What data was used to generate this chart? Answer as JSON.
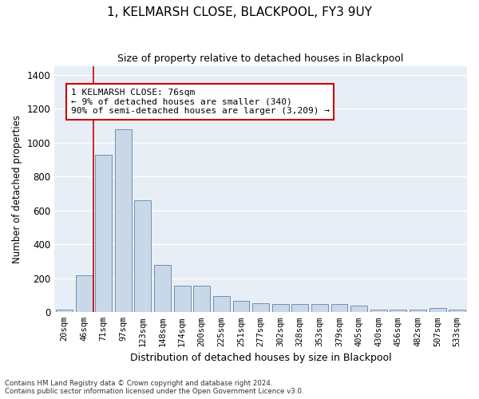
{
  "title_line1": "1, KELMARSH CLOSE, BLACKPOOL, FY3 9UY",
  "title_line2": "Size of property relative to detached houses in Blackpool",
  "xlabel": "Distribution of detached houses by size in Blackpool",
  "ylabel": "Number of detached properties",
  "categories": [
    "20sqm",
    "46sqm",
    "71sqm",
    "97sqm",
    "123sqm",
    "148sqm",
    "174sqm",
    "200sqm",
    "225sqm",
    "251sqm",
    "277sqm",
    "302sqm",
    "328sqm",
    "353sqm",
    "379sqm",
    "405sqm",
    "430sqm",
    "456sqm",
    "482sqm",
    "507sqm",
    "533sqm"
  ],
  "values": [
    15,
    220,
    930,
    1080,
    660,
    280,
    155,
    155,
    95,
    65,
    55,
    50,
    50,
    50,
    50,
    40,
    15,
    15,
    15,
    25,
    15
  ],
  "bar_color": "#c8d8e8",
  "bar_edge_color": "#7090b0",
  "background_color": "#e8eef5",
  "grid_color": "#ffffff",
  "annotation_box_color": "#cc0000",
  "property_line_idx": 2,
  "annotation_text": "1 KELMARSH CLOSE: 76sqm\n← 9% of detached houses are smaller (340)\n90% of semi-detached houses are larger (3,209) →",
  "footer_line1": "Contains HM Land Registry data © Crown copyright and database right 2024.",
  "footer_line2": "Contains public sector information licensed under the Open Government Licence v3.0.",
  "ylim": [
    0,
    1450
  ],
  "yticks": [
    0,
    200,
    400,
    600,
    800,
    1000,
    1200,
    1400
  ],
  "fig_width": 6.0,
  "fig_height": 5.0,
  "dpi": 100
}
